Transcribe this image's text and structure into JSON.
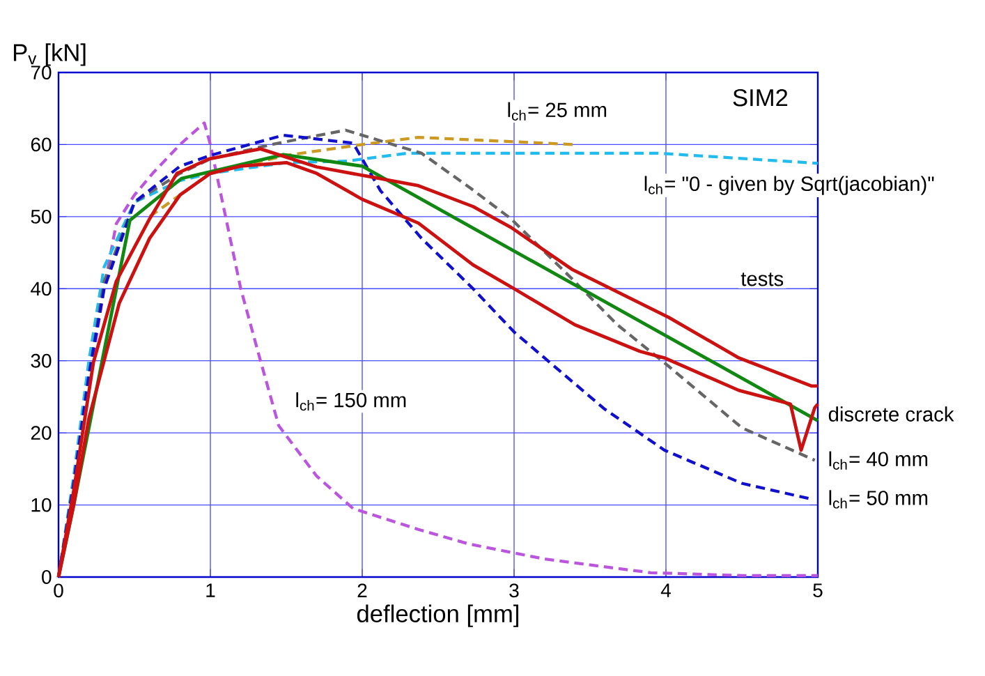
{
  "chart_data": {
    "type": "line",
    "title": "SIM2",
    "xlabel": "deflection [mm]",
    "ylabel": "P$_{v}$ [kN]",
    "xlim": [
      0,
      5
    ],
    "ylim": [
      0,
      70
    ],
    "xticks": [
      0,
      1,
      2,
      3,
      4,
      5
    ],
    "yticks": [
      0,
      10,
      20,
      30,
      40,
      50,
      60,
      70
    ],
    "grid": true,
    "series": [
      {
        "color": "#bb55dd",
        "line_style": "dashed",
        "x": [
          0,
          0.1,
          0.2,
          0.3,
          0.38,
          0.5,
          0.62,
          0.8,
          0.96,
          1.0,
          1.1,
          1.2,
          1.33,
          1.45,
          1.7,
          1.94,
          2.37,
          2.7,
          3.2,
          3.9,
          4.5,
          5
        ],
        "values": [
          0,
          12,
          27,
          40,
          49,
          53,
          56,
          60,
          63,
          60,
          50,
          40,
          30,
          21,
          14,
          9.5,
          6.6,
          4.6,
          2.5,
          0.6,
          0.2,
          0.2
        ]
      },
      {
        "color": "#22bbee",
        "line_style": "dashed",
        "x": [
          0,
          0.1,
          0.2,
          0.3,
          0.5,
          0.8,
          1.0,
          1.5,
          1.9,
          2.3,
          3.0,
          3.95,
          5
        ],
        "values": [
          0,
          14,
          30,
          43,
          52,
          55,
          56,
          57.5,
          57.7,
          58.8,
          58.8,
          58.8,
          57.4
        ]
      },
      {
        "color": "#cc9922",
        "line_style": "dashed",
        "x": [
          0.6,
          1.0,
          1.5,
          2.0,
          2.37,
          3.4
        ],
        "values": [
          50,
          56,
          58.5,
          60,
          61,
          60
        ]
      },
      {
        "color": "#666666",
        "line_style": "dashed",
        "x": [
          0,
          0.1,
          0.2,
          0.3,
          0.5,
          0.8,
          1.0,
          1.4,
          1.89,
          2.39,
          2.71,
          2.98,
          3.38,
          3.68,
          4.02,
          4.5,
          4.98
        ],
        "values": [
          0,
          13,
          28,
          41,
          52,
          56,
          58,
          60,
          62,
          58.8,
          54,
          49.7,
          41.4,
          35,
          29.2,
          20.7,
          16.2
        ]
      },
      {
        "color": "#1010cc",
        "line_style": "dashed",
        "x": [
          0,
          0.1,
          0.2,
          0.3,
          0.5,
          0.8,
          1.0,
          1.48,
          1.94,
          2.12,
          2.39,
          2.73,
          3.0,
          3.59,
          3.99,
          4.5,
          4.96
        ],
        "values": [
          0,
          13,
          28,
          40,
          52,
          57,
          58.5,
          61.3,
          60.2,
          53.6,
          47,
          40,
          34,
          23.4,
          17.6,
          13,
          10.8
        ]
      },
      {
        "color": "#118811",
        "line_style": "solid",
        "x": [
          0,
          0.1,
          0.47,
          0.81,
          1.48,
          2.0,
          5
        ],
        "values": [
          0,
          10,
          49.5,
          55.3,
          58.6,
          57,
          21.7
        ]
      },
      {
        "color": "#cc1111",
        "line_style": "solid",
        "x": [
          0,
          0.1,
          0.23,
          0.38,
          0.6,
          0.78,
          0.99,
          1.33,
          1.7,
          2.06,
          2.37,
          2.73,
          2.98,
          3.38,
          4.02,
          4.48,
          4.96,
          5
        ],
        "values": [
          0,
          12,
          29.8,
          41,
          49.7,
          56,
          58,
          59.4,
          56.9,
          55.5,
          54.3,
          51.4,
          48.5,
          42.7,
          36,
          30.4,
          26.5,
          26.5
        ]
      },
      {
        "color": "#cc1111",
        "line_style": "solid",
        "x": [
          0,
          0.1,
          0.2,
          0.4,
          0.6,
          0.8,
          1.0,
          1.2,
          1.5,
          1.7,
          2.0,
          2.37,
          2.73,
          3.0,
          3.4,
          3.83,
          3.99,
          4.48,
          4.82,
          4.89,
          4.98,
          5
        ],
        "values": [
          0,
          10,
          22,
          38,
          47,
          53,
          56,
          57,
          57.5,
          56,
          52.4,
          49.1,
          43.3,
          40,
          35,
          31.3,
          30.4,
          25.9,
          24,
          17.6,
          23.5,
          24
        ]
      }
    ],
    "annotations": [
      "l$_{ch}$= 25 mm",
      "l$_{ch}$= \"0 - given by Sqrt(jacobian)\"",
      "l$_{ch}$= 150 mm",
      "tests",
      "discrete crack",
      "l$_{ch}$= 40 mm",
      "l$_{ch}$= 50 mm"
    ]
  }
}
